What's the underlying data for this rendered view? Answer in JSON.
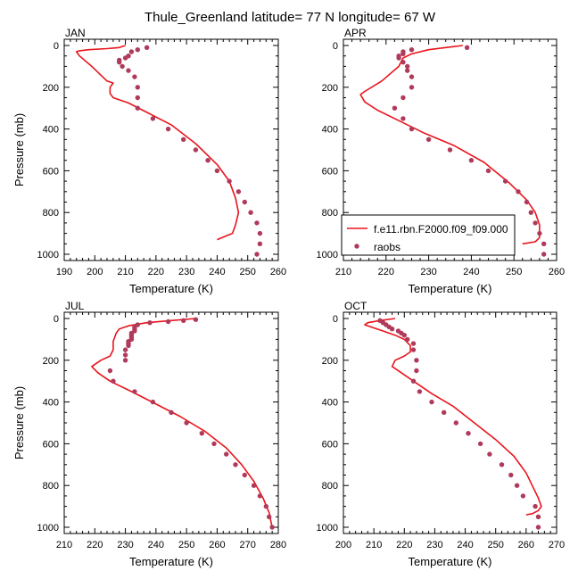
{
  "title": "Thule_Greenland  latitude= 77 N longitude= 67 W",
  "colors": {
    "model": "#e8141c",
    "raobs": "#b03a5a"
  },
  "legend": {
    "placement": "lower-left of APR panel",
    "model_label": "f.e11.rbn.F2000.f09_f09.000",
    "raobs_label": "raobs"
  },
  "chart_data": [
    {
      "type": "line",
      "panel": "JAN",
      "title": "JAN",
      "xlabel": "Temperature (K)",
      "ylabel": "Pressure (mb)",
      "xlim": [
        190,
        260
      ],
      "ylim": [
        0,
        1000
      ],
      "y_inverted": true,
      "xticks": [
        190,
        200,
        210,
        220,
        230,
        240,
        250,
        260
      ],
      "yticks": [
        0,
        200,
        400,
        600,
        800,
        1000
      ],
      "series": [
        {
          "name": "f.e11.rbn.F2000.f09_f09.000",
          "kind": "line",
          "points": [
            [
              210,
              0
            ],
            [
              208,
              10
            ],
            [
              204,
              15
            ],
            [
              198,
              20
            ],
            [
              195,
              25
            ],
            [
              194,
              30
            ],
            [
              195,
              50
            ],
            [
              199,
              100
            ],
            [
              204,
              170
            ],
            [
              206,
              180
            ],
            [
              205,
              200
            ],
            [
              205,
              230
            ],
            [
              206,
              250
            ],
            [
              211,
              275
            ],
            [
              217,
              320
            ],
            [
              225,
              380
            ],
            [
              233,
              470
            ],
            [
              240,
              570
            ],
            [
              244,
              650
            ],
            [
              246,
              730
            ],
            [
              247,
              800
            ],
            [
              246,
              860
            ],
            [
              245,
              900
            ],
            [
              240,
              930
            ]
          ]
        },
        {
          "name": "raobs",
          "kind": "points",
          "points": [
            [
              217,
              10
            ],
            [
              214,
              20
            ],
            [
              212,
              30
            ],
            [
              211,
              50
            ],
            [
              210,
              60
            ],
            [
              208,
              70
            ],
            [
              208,
              80
            ],
            [
              209,
              100
            ],
            [
              211,
              120
            ],
            [
              213,
              150
            ],
            [
              214,
              200
            ],
            [
              214,
              250
            ],
            [
              214,
              300
            ],
            [
              219,
              350
            ],
            [
              224,
              400
            ],
            [
              229,
              450
            ],
            [
              233,
              500
            ],
            [
              237,
              550
            ],
            [
              240,
              600
            ],
            [
              244,
              650
            ],
            [
              247,
              700
            ],
            [
              249,
              750
            ],
            [
              251,
              800
            ],
            [
              253,
              850
            ],
            [
              254,
              900
            ],
            [
              254,
              950
            ],
            [
              253,
              1000
            ]
          ]
        }
      ]
    },
    {
      "type": "line",
      "panel": "APR",
      "title": "APR",
      "xlabel": "Temperature (K)",
      "ylabel": "",
      "xlim": [
        210,
        260
      ],
      "ylim": [
        0,
        1000
      ],
      "y_inverted": true,
      "xticks": [
        210,
        220,
        230,
        240,
        250,
        260
      ],
      "yticks": [
        0,
        200,
        400,
        600,
        800,
        1000
      ],
      "series": [
        {
          "name": "f.e11.rbn.F2000.f09_f09.000",
          "kind": "line",
          "points": [
            [
              238,
              0
            ],
            [
              234,
              10
            ],
            [
              230,
              20
            ],
            [
              226,
              40
            ],
            [
              224,
              60
            ],
            [
              223,
              100
            ],
            [
              219,
              170
            ],
            [
              215,
              220
            ],
            [
              214,
              235
            ],
            [
              215,
              270
            ],
            [
              218,
              310
            ],
            [
              223,
              360
            ],
            [
              229,
              420
            ],
            [
              236,
              480
            ],
            [
              243,
              560
            ],
            [
              249,
              660
            ],
            [
              253,
              740
            ],
            [
              255,
              800
            ],
            [
              256,
              860
            ],
            [
              256,
              920
            ],
            [
              255,
              940
            ],
            [
              252,
              950
            ]
          ]
        },
        {
          "name": "raobs",
          "kind": "points",
          "points": [
            [
              239,
              10
            ],
            [
              226,
              20
            ],
            [
              224,
              30
            ],
            [
              224,
              40
            ],
            [
              223,
              50
            ],
            [
              223,
              60
            ],
            [
              224,
              80
            ],
            [
              225,
              100
            ],
            [
              225,
              120
            ],
            [
              226,
              150
            ],
            [
              226,
              200
            ],
            [
              224,
              250
            ],
            [
              222,
              300
            ],
            [
              224,
              350
            ],
            [
              226,
              400
            ],
            [
              230,
              450
            ],
            [
              235,
              500
            ],
            [
              240,
              550
            ],
            [
              244,
              600
            ],
            [
              248,
              650
            ],
            [
              251,
              700
            ],
            [
              253,
              750
            ],
            [
              254,
              800
            ],
            [
              255,
              850
            ],
            [
              256,
              900
            ],
            [
              257,
              950
            ],
            [
              257,
              1000
            ]
          ]
        }
      ]
    },
    {
      "type": "line",
      "panel": "JUL",
      "title": "JUL",
      "xlabel": "Temperature (K)",
      "ylabel": "Pressure (mb)",
      "xlim": [
        210,
        280
      ],
      "ylim": [
        0,
        1000
      ],
      "y_inverted": true,
      "xticks": [
        210,
        220,
        230,
        240,
        250,
        260,
        270,
        280
      ],
      "yticks": [
        0,
        200,
        400,
        600,
        800,
        1000
      ],
      "series": [
        {
          "name": "f.e11.rbn.F2000.f09_f09.000",
          "kind": "line",
          "points": [
            [
              253,
              0
            ],
            [
              245,
              10
            ],
            [
              237,
              20
            ],
            [
              231,
              35
            ],
            [
              228,
              50
            ],
            [
              227,
              70
            ],
            [
              226,
              110
            ],
            [
              226,
              150
            ],
            [
              225,
              180
            ],
            [
              222,
              200
            ],
            [
              219,
              230
            ],
            [
              221,
              260
            ],
            [
              225,
              300
            ],
            [
              232,
              350
            ],
            [
              240,
              410
            ],
            [
              248,
              470
            ],
            [
              256,
              540
            ],
            [
              263,
              620
            ],
            [
              268,
              700
            ],
            [
              272,
              780
            ],
            [
              275,
              860
            ],
            [
              277,
              930
            ],
            [
              278,
              1000
            ]
          ]
        },
        {
          "name": "raobs",
          "kind": "points",
          "points": [
            [
              253,
              5
            ],
            [
              249,
              10
            ],
            [
              244,
              15
            ],
            [
              238,
              20
            ],
            [
              234,
              30
            ],
            [
              233,
              40
            ],
            [
              233,
              50
            ],
            [
              233,
              60
            ],
            [
              232,
              70
            ],
            [
              232,
              80
            ],
            [
              232,
              90
            ],
            [
              232,
              100
            ],
            [
              231,
              110
            ],
            [
              231,
              120
            ],
            [
              231,
              130
            ],
            [
              230,
              150
            ],
            [
              230,
              175
            ],
            [
              230,
              200
            ],
            [
              225,
              250
            ],
            [
              226,
              300
            ],
            [
              233,
              350
            ],
            [
              239,
              400
            ],
            [
              245,
              450
            ],
            [
              250,
              500
            ],
            [
              255,
              550
            ],
            [
              259,
              600
            ],
            [
              263,
              650
            ],
            [
              266,
              700
            ],
            [
              269,
              750
            ],
            [
              272,
              800
            ],
            [
              274,
              850
            ],
            [
              276,
              900
            ],
            [
              277,
              950
            ],
            [
              278,
              1000
            ]
          ]
        }
      ]
    },
    {
      "type": "line",
      "panel": "OCT",
      "title": "OCT",
      "xlabel": "Temperature (K)",
      "ylabel": "",
      "xlim": [
        200,
        270
      ],
      "ylim": [
        0,
        1000
      ],
      "y_inverted": true,
      "xticks": [
        200,
        210,
        220,
        230,
        240,
        250,
        260,
        270
      ],
      "yticks": [
        0,
        200,
        400,
        600,
        800,
        1000
      ],
      "series": [
        {
          "name": "f.e11.rbn.F2000.f09_f09.000",
          "kind": "line",
          "points": [
            [
              217,
              0
            ],
            [
              212,
              10
            ],
            [
              208,
              20
            ],
            [
              207,
              30
            ],
            [
              209,
              40
            ],
            [
              213,
              60
            ],
            [
              217,
              80
            ],
            [
              220,
              100
            ],
            [
              222,
              130
            ],
            [
              222,
              160
            ],
            [
              220,
              180
            ],
            [
              217,
              200
            ],
            [
              216,
              230
            ],
            [
              219,
              260
            ],
            [
              223,
              300
            ],
            [
              229,
              360
            ],
            [
              236,
              420
            ],
            [
              243,
              500
            ],
            [
              250,
              580
            ],
            [
              256,
              660
            ],
            [
              260,
              740
            ],
            [
              262,
              800
            ],
            [
              264,
              860
            ],
            [
              265,
              900
            ],
            [
              264,
              920
            ],
            [
              262,
              935
            ],
            [
              260,
              940
            ]
          ]
        },
        {
          "name": "raobs",
          "kind": "points",
          "points": [
            [
              212,
              10
            ],
            [
              213,
              20
            ],
            [
              214,
              30
            ],
            [
              215,
              40
            ],
            [
              216,
              50
            ],
            [
              218,
              60
            ],
            [
              219,
              70
            ],
            [
              220,
              80
            ],
            [
              221,
              100
            ],
            [
              223,
              120
            ],
            [
              223,
              150
            ],
            [
              224,
              200
            ],
            [
              224,
              250
            ],
            [
              223,
              300
            ],
            [
              225,
              350
            ],
            [
              229,
              400
            ],
            [
              233,
              450
            ],
            [
              237,
              500
            ],
            [
              241,
              550
            ],
            [
              245,
              600
            ],
            [
              248,
              650
            ],
            [
              252,
              700
            ],
            [
              255,
              750
            ],
            [
              257,
              800
            ],
            [
              259,
              850
            ],
            [
              263,
              900
            ],
            [
              264,
              950
            ],
            [
              264,
              1000
            ]
          ]
        }
      ]
    }
  ]
}
